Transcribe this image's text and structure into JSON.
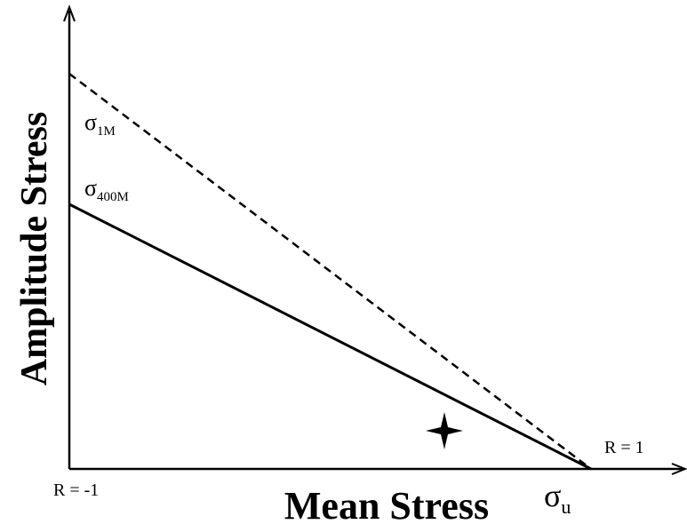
{
  "axes": {
    "x_label": "Mean Stress",
    "y_label": "Amplitude Stress"
  },
  "curves": [
    {
      "symbol": "σ",
      "subscript": "1M"
    },
    {
      "symbol": "σ",
      "subscript": "400M"
    }
  ],
  "ultimate": {
    "symbol": "σ",
    "subscript": "u"
  },
  "annotations": {
    "left": "R = -1",
    "right": "R = 1"
  }
}
